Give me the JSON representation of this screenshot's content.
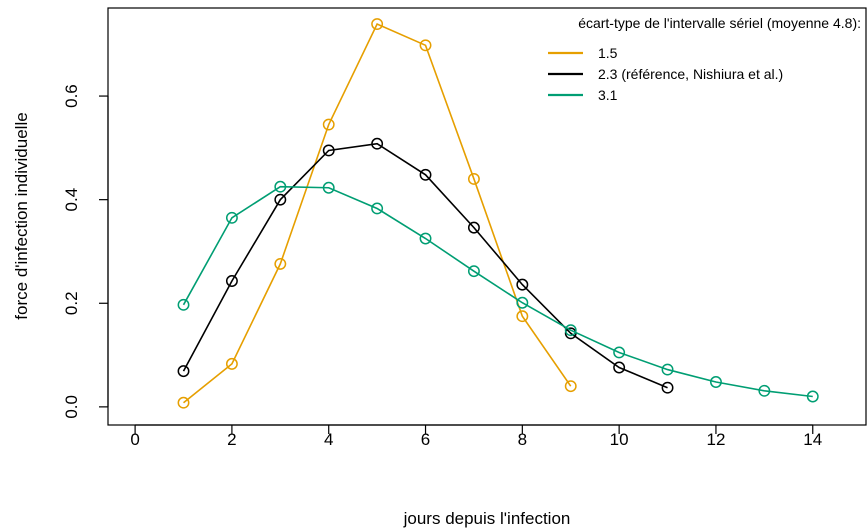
{
  "chart_data": {
    "type": "line",
    "title": "",
    "xlabel": "jours depuis l'infection",
    "ylabel": "force d'infection individuelle",
    "xlim": [
      -0.56,
      15.1
    ],
    "ylim": [
      -0.035,
      0.77
    ],
    "xticks": [
      0,
      2,
      4,
      6,
      8,
      10,
      12,
      14
    ],
    "yticks": [
      0.0,
      0.2,
      0.4,
      0.6
    ],
    "xtick_labels": [
      "0",
      "2",
      "4",
      "6",
      "8",
      "10",
      "12",
      "14"
    ],
    "ytick_labels": [
      "0.0",
      "0.2",
      "0.4",
      "0.6"
    ],
    "grid": false,
    "legend": {
      "title": "écart-type de l'intervalle sériel (moyenne 4.8):",
      "position": "top-right"
    },
    "series": [
      {
        "name": "1.5",
        "color": "#E69F00",
        "x": [
          1,
          2,
          3,
          4,
          5,
          6,
          7,
          8,
          9
        ],
        "y": [
          0.008,
          0.083,
          0.276,
          0.545,
          0.739,
          0.698,
          0.44,
          0.175,
          0.04
        ]
      },
      {
        "name": "2.3 (référence, Nishiura et al.)",
        "color": "#000000",
        "x": [
          1,
          2,
          3,
          4,
          5,
          6,
          7,
          8,
          9,
          10,
          11
        ],
        "y": [
          0.069,
          0.243,
          0.4,
          0.495,
          0.508,
          0.448,
          0.346,
          0.236,
          0.142,
          0.076,
          0.037
        ]
      },
      {
        "name": "3.1",
        "color": "#009E73",
        "x": [
          1,
          2,
          3,
          4,
          5,
          6,
          7,
          8,
          9,
          10,
          11,
          12,
          13,
          14
        ],
        "y": [
          0.197,
          0.365,
          0.425,
          0.423,
          0.383,
          0.325,
          0.262,
          0.201,
          0.148,
          0.105,
          0.072,
          0.048,
          0.031,
          0.02
        ]
      }
    ]
  }
}
